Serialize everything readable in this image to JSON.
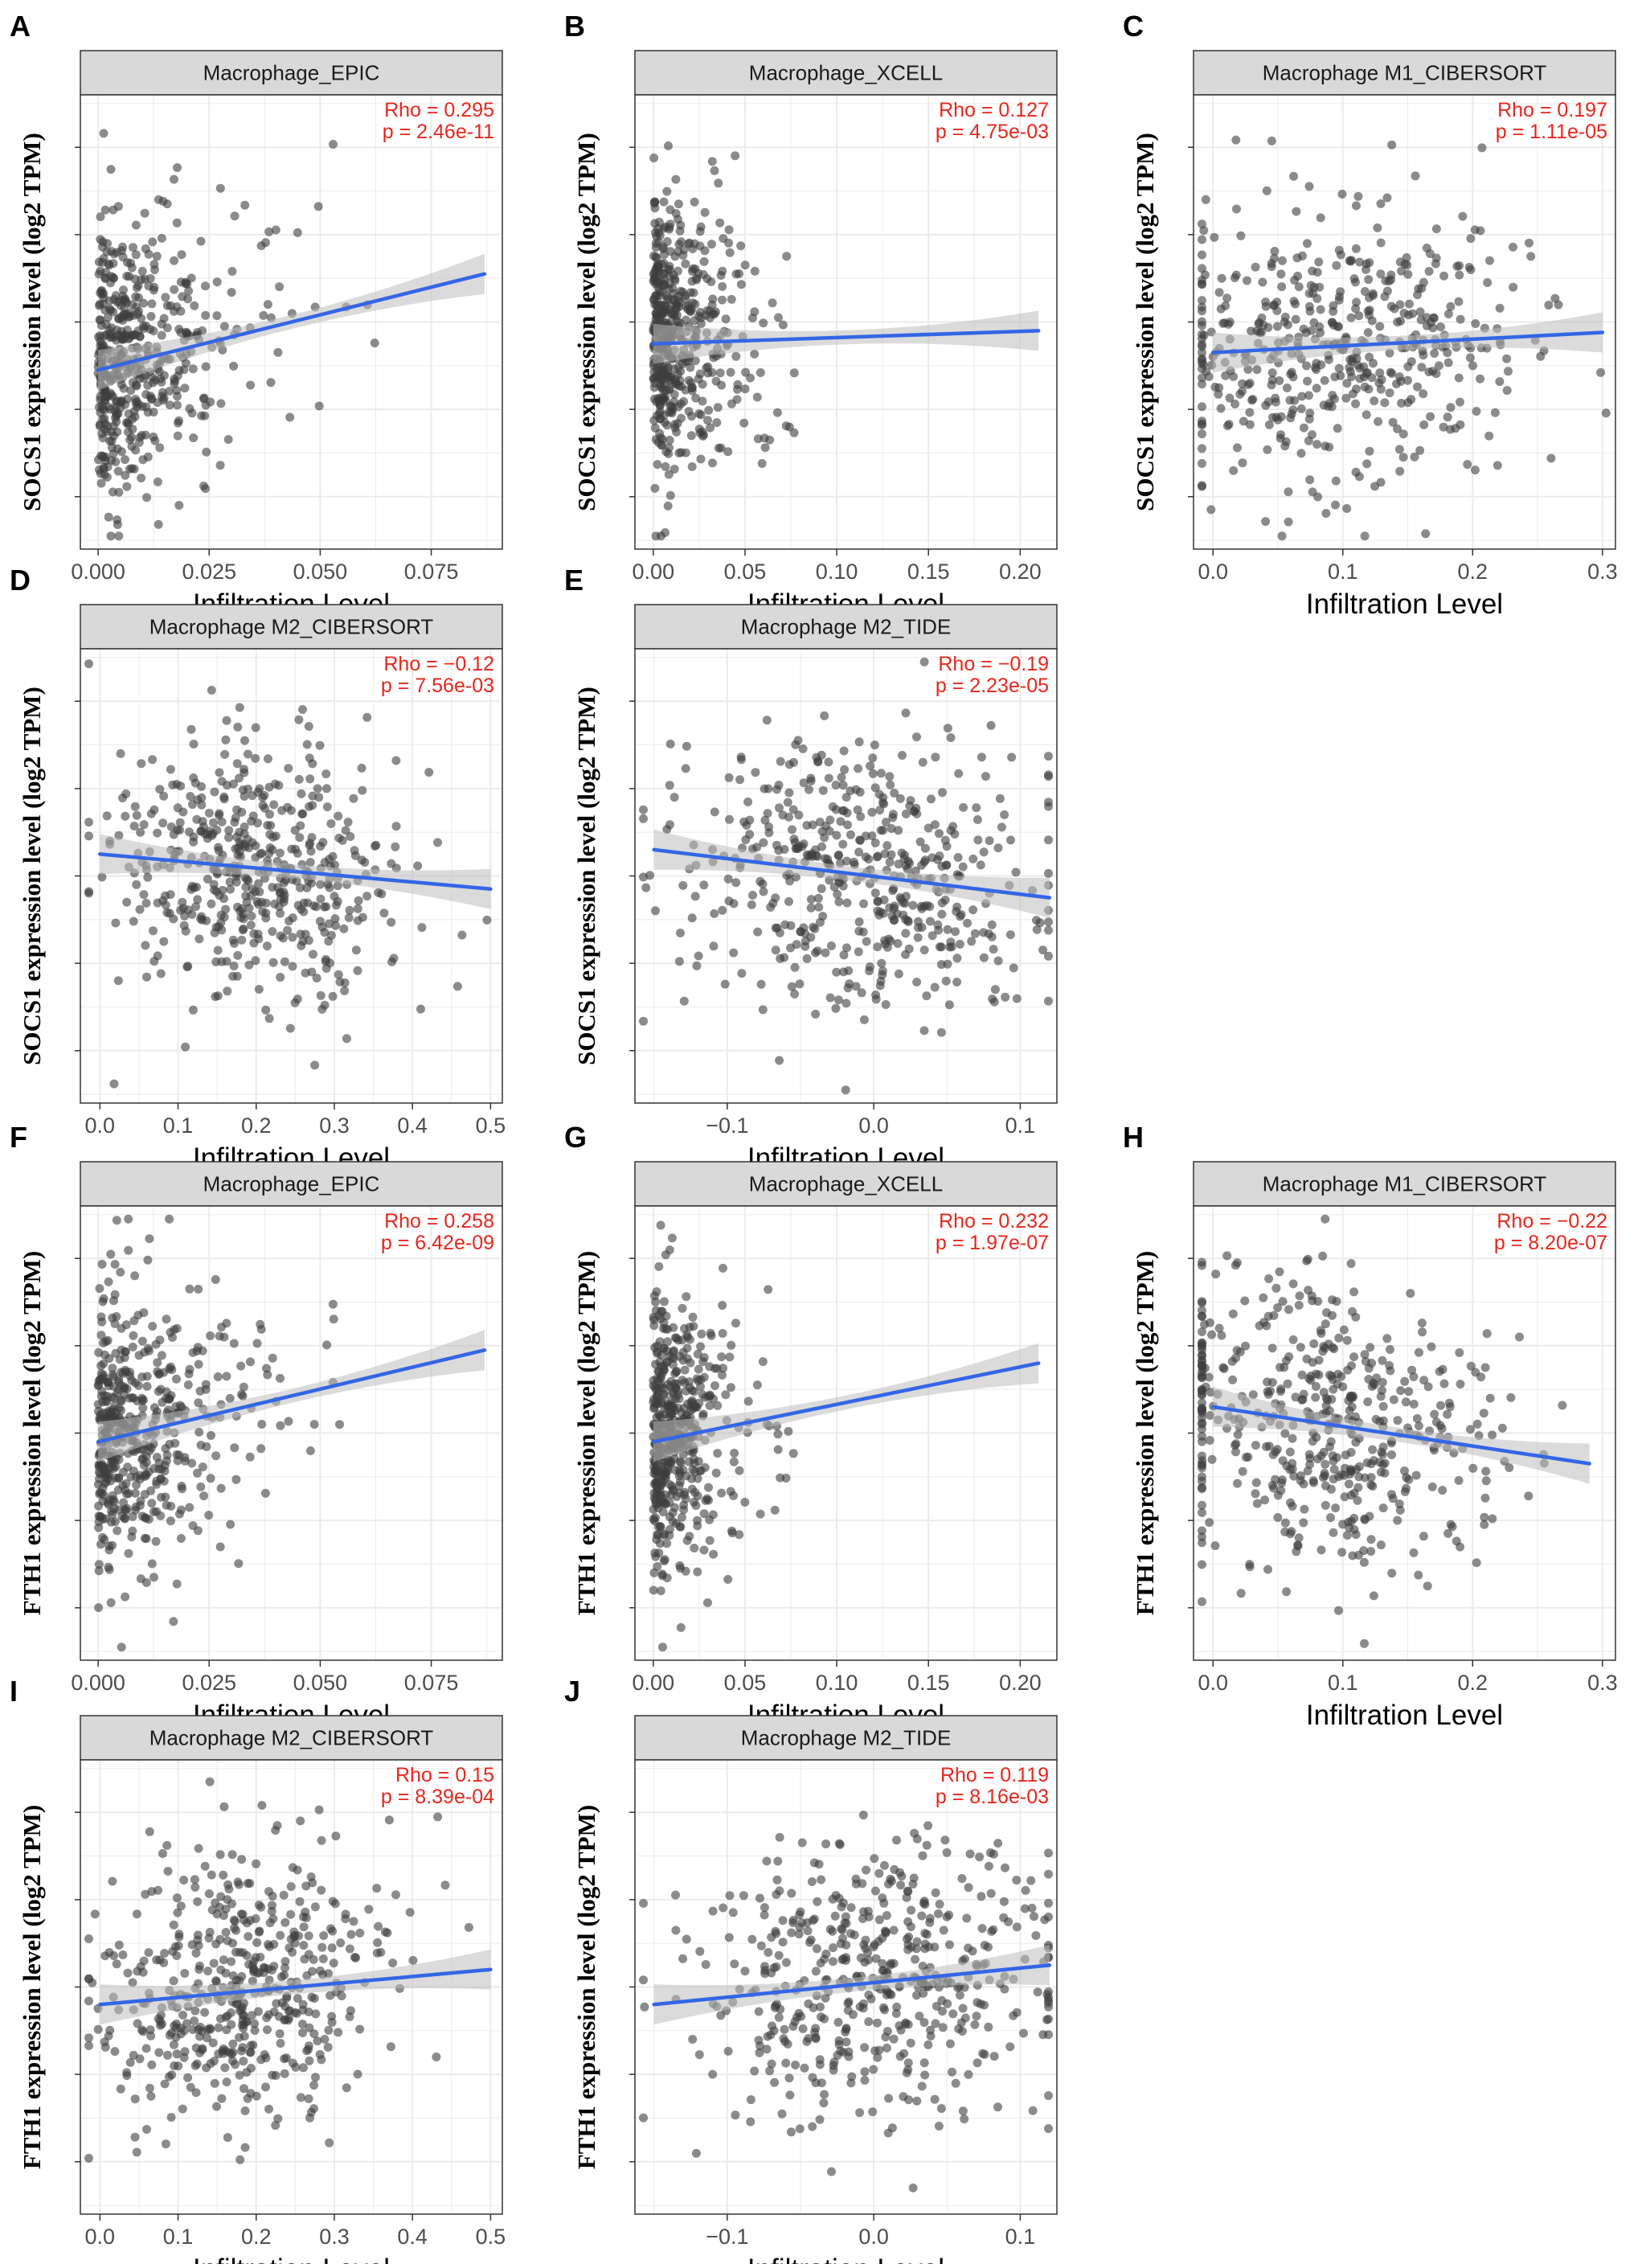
{
  "figure": {
    "x_axis_label": "Infiltration Level",
    "colors": {
      "point": "#3d3d3d",
      "line": "#3366e6",
      "band": "#bdbdbd",
      "stat": "#e8261c",
      "strip": "#d9d9d9",
      "grid": "#ebebeb"
    }
  },
  "chart_data": [
    {
      "id": "A",
      "type": "scatter",
      "gene": "SOCS1",
      "title": "Macrophage_EPIC",
      "ylabel": "SOCS1 expression level (log2 TPM)",
      "xlabel": "Infiltration Level",
      "xlim": [
        -0.004,
        0.091
      ],
      "xticks": [
        0,
        0.025,
        0.05,
        0.075
      ],
      "xtick_labels": [
        "0.000",
        "0.025",
        "0.050",
        "0.075"
      ],
      "rho": "Rho = 0.295",
      "p": "p = 2.46e-11",
      "fit": [
        [
          0.0,
          -0.55
        ],
        [
          0.087,
          0.55
        ]
      ],
      "seed": 11,
      "cluster": [
        0.0,
        0.02
      ],
      "skew": "right",
      "n": 500
    },
    {
      "id": "B",
      "type": "scatter",
      "gene": "SOCS1",
      "title": "Macrophage_XCELL",
      "ylabel": "SOCS1 expression level (log2 TPM)",
      "xlabel": "Infiltration Level",
      "xlim": [
        -0.01,
        0.22
      ],
      "xticks": [
        0,
        0.05,
        0.1,
        0.15,
        0.2
      ],
      "xtick_labels": [
        "0.00",
        "0.05",
        "0.10",
        "0.15",
        "0.20"
      ],
      "rho": "Rho = 0.127",
      "p": "p = 4.75e-03",
      "fit": [
        [
          0.0,
          -0.25
        ],
        [
          0.21,
          -0.1
        ]
      ],
      "seed": 23,
      "cluster": [
        0.0,
        0.03
      ],
      "skew": "right",
      "n": 500
    },
    {
      "id": "C",
      "type": "scatter",
      "gene": "SOCS1",
      "title": "Macrophage M1_CIBERSORT",
      "ylabel": "SOCS1 expression level (log2 TPM)",
      "xlabel": "Infiltration Level",
      "xlim": [
        -0.015,
        0.31
      ],
      "xticks": [
        0,
        0.1,
        0.2,
        0.3
      ],
      "xtick_labels": [
        "0.0",
        "0.1",
        "0.2",
        "0.3"
      ],
      "rho": "Rho = 0.197",
      "p": "p = 1.11e-05",
      "fit": [
        [
          0.0,
          -0.35
        ],
        [
          0.3,
          -0.12
        ]
      ],
      "seed": 37,
      "cluster": [
        0.1,
        0.07
      ],
      "skew": "none",
      "n": 500
    },
    {
      "id": "D",
      "type": "scatter",
      "gene": "SOCS1",
      "title": "Macrophage M2_CIBERSORT",
      "ylabel": "SOCS1 expression level (log2 TPM)",
      "xlabel": "Infiltration Level",
      "xlim": [
        -0.025,
        0.515
      ],
      "xticks": [
        0,
        0.1,
        0.2,
        0.3,
        0.4,
        0.5
      ],
      "xtick_labels": [
        "0.0",
        "0.1",
        "0.2",
        "0.3",
        "0.4",
        "0.5"
      ],
      "rho": "Rho = −0.12",
      "p": "p = 7.56e-03",
      "fit": [
        [
          0.0,
          0.25
        ],
        [
          0.5,
          -0.15
        ]
      ],
      "seed": 41,
      "cluster": [
        0.2,
        0.09
      ],
      "skew": "none",
      "n": 500
    },
    {
      "id": "E",
      "type": "scatter",
      "gene": "SOCS1",
      "title": "Macrophage M2_TIDE",
      "ylabel": "SOCS1 expression level (log2 TPM)",
      "xlabel": "Infiltration Level",
      "xlim": [
        -0.163,
        0.125
      ],
      "xticks": [
        -0.1,
        0,
        0.1
      ],
      "xtick_labels": [
        "−0.1",
        "0.0",
        "0.1"
      ],
      "rho": "Rho = −0.19",
      "p": "p = 2.23e-05",
      "fit": [
        [
          -0.15,
          0.3
        ],
        [
          0.12,
          -0.25
        ]
      ],
      "seed": 53,
      "cluster": [
        -0.01,
        0.06
      ],
      "skew": "none",
      "n": 500
    },
    {
      "id": "F",
      "type": "scatter",
      "gene": "FTH1",
      "title": "Macrophage_EPIC",
      "ylabel": "FTH1 expression level (log2 TPM)",
      "xlabel": "Infiltration Level",
      "xlim": [
        -0.004,
        0.091
      ],
      "xticks": [
        0,
        0.025,
        0.05,
        0.075
      ],
      "xtick_labels": [
        "0.000",
        "0.025",
        "0.050",
        "0.075"
      ],
      "rho": "Rho = 0.258",
      "p": "p = 6.42e-09",
      "fit": [
        [
          0.0,
          -0.1
        ],
        [
          0.087,
          0.95
        ]
      ],
      "seed": 67,
      "cluster": [
        0.0,
        0.02
      ],
      "skew": "right",
      "n": 500
    },
    {
      "id": "G",
      "type": "scatter",
      "gene": "FTH1",
      "title": "Macrophage_XCELL",
      "ylabel": "FTH1 expression level (log2 TPM)",
      "xlabel": "Infiltration Level",
      "xlim": [
        -0.01,
        0.22
      ],
      "xticks": [
        0,
        0.05,
        0.1,
        0.15,
        0.2
      ],
      "xtick_labels": [
        "0.00",
        "0.05",
        "0.10",
        "0.15",
        "0.20"
      ],
      "rho": "Rho = 0.232",
      "p": "p = 1.97e-07",
      "fit": [
        [
          0.0,
          -0.1
        ],
        [
          0.21,
          0.8
        ]
      ],
      "seed": 79,
      "cluster": [
        0.0,
        0.03
      ],
      "skew": "right",
      "n": 500
    },
    {
      "id": "H",
      "type": "scatter",
      "gene": "FTH1",
      "title": "Macrophage M1_CIBERSORT",
      "ylabel": "FTH1 expression level (log2 TPM)",
      "xlabel": "Infiltration Level",
      "xlim": [
        -0.015,
        0.31
      ],
      "xticks": [
        0,
        0.1,
        0.2,
        0.3
      ],
      "xtick_labels": [
        "0.0",
        "0.1",
        "0.2",
        "0.3"
      ],
      "rho": "Rho = −0.22",
      "p": "p = 8.20e-07",
      "fit": [
        [
          0.0,
          0.3
        ],
        [
          0.29,
          -0.35
        ]
      ],
      "seed": 89,
      "cluster": [
        0.08,
        0.07
      ],
      "skew": "none",
      "n": 500
    },
    {
      "id": "I",
      "type": "scatter",
      "gene": "FTH1",
      "title": "Macrophage M2_CIBERSORT",
      "ylabel": "FTH1 expression level (log2 TPM)",
      "xlabel": "Infiltration Level",
      "xlim": [
        -0.025,
        0.515
      ],
      "xticks": [
        0,
        0.1,
        0.2,
        0.3,
        0.4,
        0.5
      ],
      "xtick_labels": [
        "0.0",
        "0.1",
        "0.2",
        "0.3",
        "0.4",
        "0.5"
      ],
      "rho": "Rho = 0.15",
      "p": "p = 8.39e-04",
      "fit": [
        [
          0.0,
          -0.2
        ],
        [
          0.5,
          0.2
        ]
      ],
      "seed": 97,
      "cluster": [
        0.18,
        0.09
      ],
      "skew": "none",
      "n": 500
    },
    {
      "id": "J",
      "type": "scatter",
      "gene": "FTH1",
      "title": "Macrophage M2_TIDE",
      "ylabel": "FTH1 expression level (log2 TPM)",
      "xlabel": "Infiltration Level",
      "xlim": [
        -0.163,
        0.125
      ],
      "xticks": [
        -0.1,
        0,
        0.1
      ],
      "xtick_labels": [
        "−0.1",
        "0.0",
        "0.1"
      ],
      "rho": "Rho = 0.119",
      "p": "p = 8.16e-03",
      "fit": [
        [
          -0.15,
          -0.2
        ],
        [
          0.12,
          0.25
        ]
      ],
      "seed": 103,
      "cluster": [
        0.0,
        0.06
      ],
      "skew": "none",
      "n": 500
    }
  ]
}
